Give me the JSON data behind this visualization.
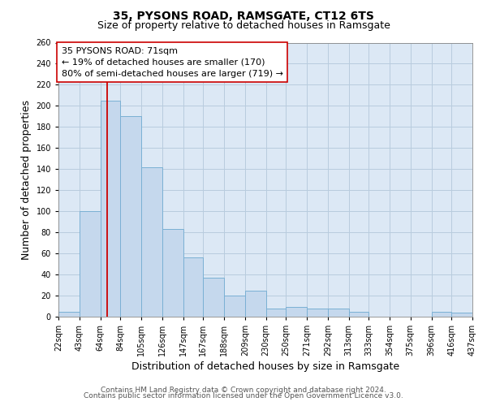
{
  "title": "35, PYSONS ROAD, RAMSGATE, CT12 6TS",
  "subtitle": "Size of property relative to detached houses in Ramsgate",
  "xlabel": "Distribution of detached houses by size in Ramsgate",
  "ylabel": "Number of detached properties",
  "bar_edges": [
    22,
    43,
    64,
    84,
    105,
    126,
    147,
    167,
    188,
    209,
    230,
    250,
    271,
    292,
    313,
    333,
    354,
    375,
    396,
    416,
    437
  ],
  "bar_heights": [
    5,
    100,
    205,
    190,
    142,
    83,
    56,
    37,
    20,
    25,
    8,
    9,
    8,
    8,
    5,
    0,
    0,
    0,
    5,
    4
  ],
  "bar_color": "#c5d8ed",
  "bar_edge_color": "#7ab0d4",
  "property_line_x": 71,
  "property_line_color": "#cc0000",
  "annotation_text": "35 PYSONS ROAD: 71sqm\n← 19% of detached houses are smaller (170)\n80% of semi-detached houses are larger (719) →",
  "annotation_box_color": "#ffffff",
  "annotation_box_edge": "#cc0000",
  "ylim": [
    0,
    260
  ],
  "tick_labels": [
    "22sqm",
    "43sqm",
    "64sqm",
    "84sqm",
    "105sqm",
    "126sqm",
    "147sqm",
    "167sqm",
    "188sqm",
    "209sqm",
    "230sqm",
    "250sqm",
    "271sqm",
    "292sqm",
    "313sqm",
    "333sqm",
    "354sqm",
    "375sqm",
    "396sqm",
    "416sqm",
    "437sqm"
  ],
  "footer_line1": "Contains HM Land Registry data © Crown copyright and database right 2024.",
  "footer_line2": "Contains public sector information licensed under the Open Government Licence v3.0.",
  "bg_color": "#ffffff",
  "axes_bg_color": "#dce8f5",
  "grid_color": "#b8ccde",
  "title_fontsize": 10,
  "subtitle_fontsize": 9,
  "axis_label_fontsize": 9,
  "tick_fontsize": 7,
  "annotation_fontsize": 8,
  "footer_fontsize": 6.5,
  "yticks": [
    0,
    20,
    40,
    60,
    80,
    100,
    120,
    140,
    160,
    180,
    200,
    220,
    240,
    260
  ]
}
